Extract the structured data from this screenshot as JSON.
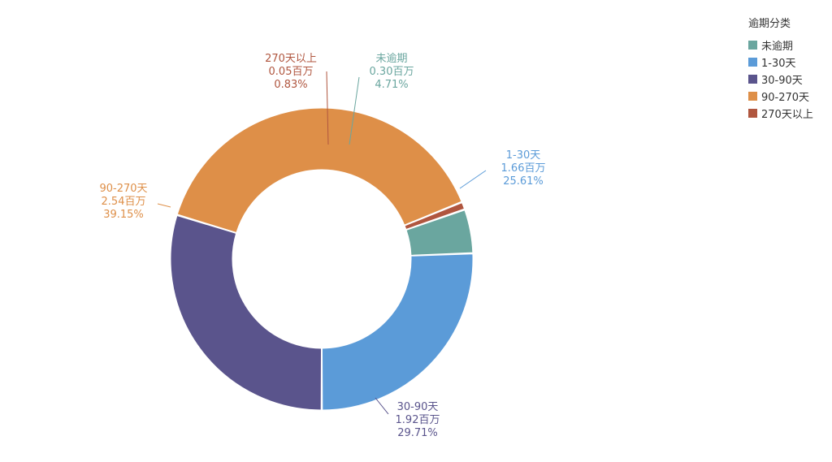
{
  "legend": {
    "title": "逾期分类"
  },
  "chart_data": {
    "type": "pie",
    "variant": "donut",
    "unit": "百万",
    "legend_position": "top-right",
    "series": [
      {
        "name": "未逾期",
        "value": 0.3,
        "value_label": "0.30百万",
        "percent_label": "4.71%",
        "percent": 4.71,
        "color": "#6aa69f"
      },
      {
        "name": "1-30天",
        "value": 1.66,
        "value_label": "1.66百万",
        "percent_label": "25.61%",
        "percent": 25.61,
        "color": "#5b9bd8"
      },
      {
        "name": "30-90天",
        "value": 1.92,
        "value_label": "1.92百万",
        "percent_label": "29.71%",
        "percent": 29.71,
        "color": "#5a548c"
      },
      {
        "name": "90-270天",
        "value": 2.54,
        "value_label": "2.54百万",
        "percent_label": "39.15%",
        "percent": 39.15,
        "color": "#de8f48"
      },
      {
        "name": "270天以上",
        "value": 0.05,
        "value_label": "0.05百万",
        "percent_label": "0.83%",
        "percent": 0.83,
        "color": "#b0563f"
      }
    ]
  }
}
